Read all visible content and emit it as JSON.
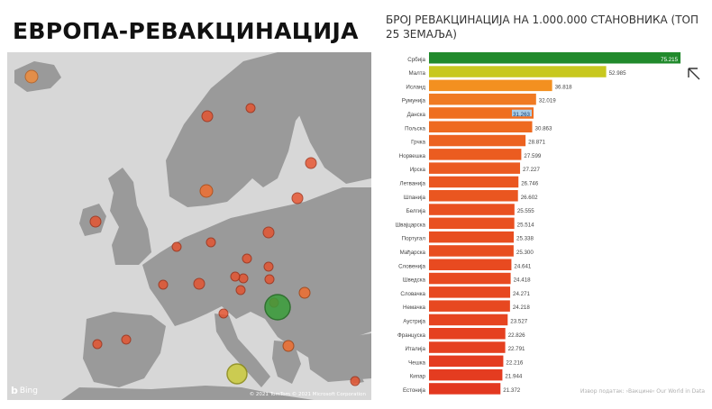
{
  "page": {
    "title": "ЕВРОПА-РЕВАКЦИНАЦИЈА"
  },
  "map": {
    "provider": "Bing",
    "copyright": "© 2021 TomTom  © 2021 Microsoft Corporation",
    "land_color": "#9a9a9a",
    "sea_color": "#d7d7d7",
    "bubbles": [
      {
        "country": "Србија",
        "color": "#3a9e3a"
      },
      {
        "country": "Малта",
        "color": "#c9c93a"
      },
      {
        "country": "Исланд",
        "color": "#f08c3c"
      }
    ]
  },
  "chart_data": {
    "type": "bar",
    "orientation": "horizontal",
    "title": "БРОЈ РЕВАКЦИНАЦИЈА НА 1.000.000 СТАНОВНИКА (ТОП 25 ЗЕМАЉА)",
    "xlim": [
      0,
      76000
    ],
    "categories": [
      "Србија",
      "Малта",
      "Исланд",
      "Румунија",
      "Данска",
      "Пољска",
      "Грчка",
      "Норвешка",
      "Ирска",
      "Летванија",
      "Шпанија",
      "Белгија",
      "Швајцарска",
      "Португал",
      "Мађарска",
      "Словенија",
      "Шведска",
      "Словачка",
      "Немачка",
      "Аустрија",
      "Француска",
      "Италија",
      "Чешка",
      "Кипар",
      "Естонија"
    ],
    "labels": [
      "75.215",
      "52.985",
      "36.818",
      "32.019",
      "31.263",
      "30.863",
      "28.871",
      "27.599",
      "27.227",
      "26.746",
      "26.602",
      "25.555",
      "25.514",
      "25.338",
      "25.300",
      "24.641",
      "24.418",
      "24.271",
      "24.218",
      "23.527",
      "22.826",
      "22.791",
      "22.216",
      "21.944",
      "21.372"
    ],
    "values": [
      75215,
      52985,
      36818,
      32019,
      31263,
      30863,
      28871,
      27599,
      27227,
      26746,
      26602,
      25555,
      25514,
      25338,
      25300,
      24641,
      24418,
      24271,
      24218,
      23527,
      22826,
      22791,
      22216,
      21944,
      21372
    ],
    "colors": [
      "#218a2c",
      "#c8c81e",
      "#f39020",
      "#f07a22",
      "#ef6e20",
      "#ee6a20",
      "#ec6220",
      "#eb5c20",
      "#eb5a20",
      "#ea5620",
      "#ea5620",
      "#e95020",
      "#e95020",
      "#e84e20",
      "#e84e20",
      "#e84a20",
      "#e84a20",
      "#e74820",
      "#e74820",
      "#e64420",
      "#e54020",
      "#e54020",
      "#e43c20",
      "#e43c20",
      "#e33820"
    ],
    "highlight_index": 4,
    "highlight_color": "#a9cde8"
  },
  "source": "Извор податак: ›Вакцине‹ Our World in Data"
}
